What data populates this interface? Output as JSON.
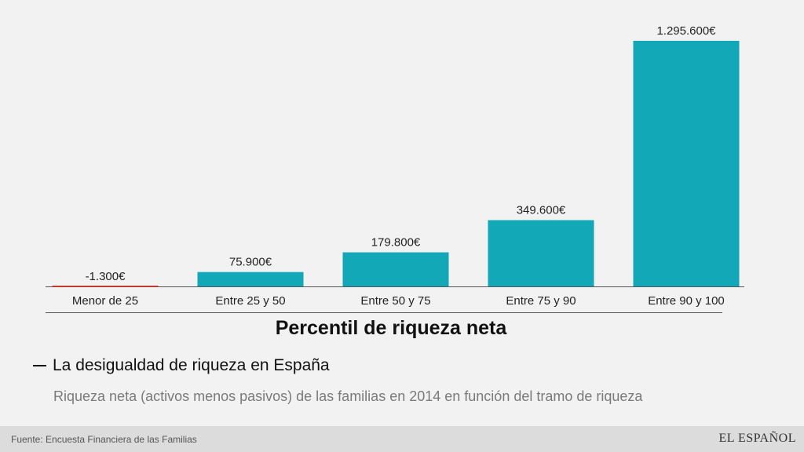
{
  "chart_data": {
    "type": "bar",
    "categories": [
      "Menor de 25",
      "Entre 25 y 50",
      "Entre 50 y 75",
      "Entre 75 y 90",
      "Entre 90 y 100"
    ],
    "values": [
      -1300,
      75900,
      179800,
      349600,
      1295600
    ],
    "data_labels": [
      "-1.300€",
      "75.900€",
      "179.800€",
      "349.600€",
      "1.295.600€"
    ],
    "bar_color": "#13a8b8",
    "negative_color": "#c0392b",
    "xlabel": "Percentil de riqueza neta",
    "ylabel": "",
    "grid": false
  },
  "title": "La desigualdad de riqueza en España",
  "subtitle": "Riqueza neta (activos menos pasivos) de las familias en 2014 en función del tramo de riqueza",
  "source": "Fuente: Encuesta Financiera de las Familias",
  "logo": "EL ESPAÑOL"
}
